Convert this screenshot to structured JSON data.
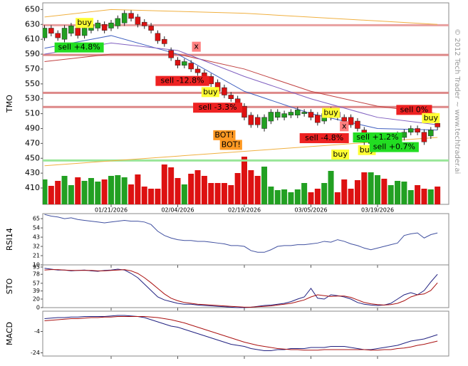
{
  "chart_data": [
    {
      "type": "candlestick",
      "ylabel": "TMO",
      "watermark": "© 2012 Tech Trader ~ www.techtrader.ai",
      "categories": [
        null,
        null,
        null,
        null,
        null,
        null,
        null,
        null,
        null,
        null,
        "01/21/2026",
        null,
        null,
        null,
        null,
        null,
        null,
        null,
        null,
        null,
        "02/04/2026",
        null,
        null,
        null,
        null,
        null,
        null,
        null,
        null,
        null,
        "02/19/2026",
        null,
        null,
        null,
        null,
        null,
        null,
        null,
        null,
        null,
        "03/05/2026",
        null,
        null,
        null,
        null,
        null,
        null,
        null,
        null,
        null,
        "03/19/2026",
        null,
        null,
        null,
        null,
        null,
        null,
        null,
        null,
        null
      ],
      "open": [
        612,
        625,
        618,
        610,
        618,
        625,
        615,
        622,
        625,
        630,
        625,
        628,
        632,
        645,
        640,
        633,
        628,
        618,
        610,
        595,
        582,
        575,
        578,
        570,
        565,
        560,
        552,
        545,
        535,
        530,
        520,
        508,
        505,
        490,
        500,
        505,
        505,
        508,
        508,
        510,
        512,
        508,
        500,
        505,
        512,
        505,
        505,
        500,
        488,
        470,
        472,
        478,
        470,
        475,
        478,
        485,
        490,
        485,
        480,
        497
      ],
      "high": [
        629,
        629,
        622,
        629,
        632,
        629,
        629,
        634,
        636,
        634,
        636,
        642,
        649,
        649,
        644,
        637,
        632,
        622,
        614,
        599,
        586,
        584,
        582,
        574,
        569,
        564,
        556,
        549,
        539,
        534,
        524,
        512,
        509,
        509,
        516,
        516,
        514,
        516,
        519,
        516,
        516,
        512,
        514,
        519,
        516,
        509,
        509,
        504,
        492,
        484,
        482,
        482,
        480,
        486,
        489,
        494,
        494,
        489,
        492,
        501
      ],
      "low": [
        608,
        614,
        608,
        606,
        614,
        611,
        611,
        618,
        621,
        618,
        621,
        624,
        628,
        634,
        626,
        624,
        618,
        604,
        600,
        581,
        571,
        571,
        566,
        561,
        551,
        546,
        536,
        531,
        526,
        516,
        501,
        491,
        491,
        486,
        496,
        501,
        501,
        504,
        504,
        506,
        501,
        494,
        496,
        501,
        501,
        496,
        491,
        486,
        468,
        466,
        468,
        466,
        466,
        471,
        474,
        481,
        481,
        468,
        476,
        488
      ],
      "close": [
        625,
        618,
        612,
        625,
        628,
        615,
        625,
        630,
        632,
        622,
        632,
        638,
        645,
        638,
        630,
        628,
        622,
        608,
        604,
        585,
        575,
        580,
        570,
        565,
        555,
        550,
        540,
        535,
        530,
        520,
        505,
        495,
        495,
        505,
        512,
        512,
        510,
        512,
        515,
        512,
        505,
        498,
        510,
        515,
        505,
        500,
        495,
        490,
        472,
        480,
        478,
        470,
        476,
        482,
        485,
        490,
        485,
        472,
        488,
        492
      ],
      "volume": [
        35,
        26,
        33,
        40,
        27,
        38,
        33,
        37,
        32,
        35,
        40,
        41,
        38,
        28,
        42,
        25,
        22,
        22,
        56,
        52,
        37,
        28,
        43,
        48,
        40,
        30,
        30,
        30,
        27,
        44,
        67,
        48,
        40,
        53,
        25,
        20,
        21,
        17,
        21,
        30,
        17,
        22,
        30,
        47,
        17,
        35,
        22,
        34,
        45,
        45,
        41,
        36,
        27,
        33,
        32,
        20,
        27,
        22,
        21,
        25
      ],
      "volume_lim": [
        0,
        100
      ],
      "up_color": "#22a022",
      "down_color": "#dd1111",
      "ylim": [
        388,
        659
      ],
      "yticks": [
        410,
        430,
        450,
        470,
        490,
        510,
        530,
        550,
        570,
        590,
        610,
        630,
        650
      ],
      "levels": [
        {
          "value": 629,
          "color": "#e8a0a0"
        },
        {
          "value": 589,
          "color": "#dd8888"
        },
        {
          "value": 538,
          "color": "#dd8888"
        },
        {
          "value": 519,
          "color": "#dd8888"
        },
        {
          "value": 447,
          "color": "#99e699"
        }
      ],
      "lines": [
        {
          "color": "#f0b040",
          "x": [
            0,
            10,
            30,
            59
          ],
          "values": [
            640,
            650,
            645,
            630
          ]
        },
        {
          "color": "#f0b040",
          "x": [
            0,
            59
          ],
          "values": [
            440,
            478
          ]
        },
        {
          "color": "#c04040",
          "x": [
            0,
            10,
            20,
            30,
            40,
            50,
            59
          ],
          "values": [
            580,
            590,
            590,
            570,
            540,
            520,
            510
          ]
        },
        {
          "color": "#4060c0",
          "x": [
            0,
            10,
            20,
            30,
            40,
            50,
            59
          ],
          "values": [
            598,
            615,
            590,
            540,
            510,
            490,
            488
          ]
        },
        {
          "color": "#8060c0",
          "x": [
            0,
            10,
            20,
            30,
            40,
            50,
            59
          ],
          "values": [
            590,
            605,
            595,
            560,
            530,
            505,
            495
          ]
        }
      ],
      "annotations": [
        {
          "text": "buy",
          "x": 6,
          "y": 632,
          "color": "#ffff33"
        },
        {
          "text": "sell +4.8%",
          "x": 5.2,
          "y": 599,
          "color": "#22dd22"
        },
        {
          "text": "x",
          "x": 22.8,
          "y": 600,
          "color": "#ff8080"
        },
        {
          "text": "sell -12.8%",
          "x": 20.7,
          "y": 554,
          "color": "#ee2222"
        },
        {
          "text": "buy",
          "x": 24.9,
          "y": 539,
          "color": "#ffff33"
        },
        {
          "text": "sell -3.3%",
          "x": 26,
          "y": 518,
          "color": "#ee2222"
        },
        {
          "text": "BOT!",
          "x": 27,
          "y": 481,
          "color": "#ff9922"
        },
        {
          "text": "BOT!",
          "x": 28,
          "y": 468,
          "color": "#ff9922"
        },
        {
          "text": "buy",
          "x": 43,
          "y": 511,
          "color": "#ffff33"
        },
        {
          "text": "x",
          "x": 45,
          "y": 493,
          "color": "#ff8080"
        },
        {
          "text": "sell -4.8%",
          "x": 42,
          "y": 477,
          "color": "#ee2222"
        },
        {
          "text": "buy",
          "x": 44.4,
          "y": 455,
          "color": "#ffff33"
        },
        {
          "text": "buy",
          "x": 48.4,
          "y": 461,
          "color": "#ffff33"
        },
        {
          "text": "sell +1.2%",
          "x": 50,
          "y": 478,
          "color": "#22dd22"
        },
        {
          "text": "sell +0.7%",
          "x": 52.5,
          "y": 465,
          "color": "#22dd22"
        },
        {
          "text": "sell 0%",
          "x": 55.5,
          "y": 515,
          "color": "#ee2222"
        },
        {
          "text": "buy",
          "x": 58,
          "y": 504,
          "color": "#ffff33"
        }
      ]
    },
    {
      "type": "line",
      "ylabel": "RSI14",
      "ylim": [
        10,
        71
      ],
      "yticks": [
        10,
        21,
        32,
        43,
        54,
        65
      ],
      "series": [
        {
          "color": "#4050a0",
          "values": [
            70,
            68,
            67,
            65,
            66,
            64,
            63,
            62,
            61,
            60,
            61,
            62,
            63,
            62,
            62,
            61,
            58,
            50,
            45,
            42,
            40,
            39,
            39,
            38,
            38,
            37,
            36,
            35,
            33,
            33,
            32,
            27,
            25,
            25,
            28,
            32,
            33,
            33,
            34,
            34,
            35,
            36,
            38,
            37,
            40,
            38,
            35,
            33,
            30,
            28,
            30,
            32,
            34,
            36,
            45,
            47,
            48,
            42,
            46,
            48
          ]
        }
      ]
    },
    {
      "type": "line",
      "ylabel": "STO",
      "ylim": [
        0,
        100
      ],
      "yticks": [
        0,
        20,
        39,
        57,
        78,
        95
      ],
      "series": [
        {
          "color": "#202080",
          "values": [
            92,
            90,
            88,
            88,
            86,
            87,
            88,
            86,
            85,
            87,
            88,
            90,
            88,
            80,
            70,
            55,
            40,
            25,
            18,
            14,
            10,
            8,
            8,
            6,
            5,
            4,
            3,
            2,
            1,
            0,
            0,
            1,
            3,
            5,
            6,
            8,
            10,
            14,
            20,
            25,
            45,
            22,
            20,
            30,
            28,
            25,
            20,
            12,
            8,
            6,
            5,
            6,
            10,
            20,
            30,
            35,
            30,
            40,
            60,
            78
          ]
        },
        {
          "color": "#aa1111",
          "values": [
            88,
            89,
            89,
            88,
            87,
            87,
            87,
            87,
            86,
            86,
            87,
            88,
            89,
            86,
            80,
            70,
            58,
            45,
            32,
            22,
            16,
            12,
            10,
            8,
            7,
            6,
            5,
            4,
            3,
            2,
            1,
            1,
            2,
            3,
            4,
            6,
            8,
            10,
            14,
            18,
            25,
            30,
            28,
            26,
            27,
            27,
            24,
            18,
            12,
            9,
            7,
            6,
            7,
            10,
            16,
            25,
            30,
            32,
            40,
            58
          ]
        }
      ]
    },
    {
      "type": "line",
      "ylabel": "MACD",
      "ylim": [
        -27,
        15
      ],
      "yticks": [
        -24,
        -4
      ],
      "series": [
        {
          "color": "#202080",
          "values": [
            8,
            8.5,
            9,
            9,
            9.5,
            9.5,
            10,
            10,
            10,
            10,
            10.5,
            11,
            11,
            10.5,
            10,
            9,
            7,
            5,
            3,
            1,
            0,
            -2,
            -4,
            -6,
            -8,
            -10,
            -12,
            -14,
            -16,
            -17,
            -18,
            -20,
            -21,
            -22,
            -22,
            -21,
            -21,
            -20,
            -20,
            -20,
            -19,
            -19,
            -19,
            -18,
            -18,
            -18,
            -19,
            -20,
            -21,
            -21,
            -20,
            -19,
            -18,
            -17,
            -15,
            -13,
            -12,
            -11,
            -9,
            -7
          ]
        },
        {
          "color": "#aa1111",
          "values": [
            6,
            6.5,
            7,
            7.5,
            8,
            8,
            8.5,
            9,
            9,
            9.5,
            9.5,
            10,
            10,
            10,
            10,
            10,
            9.5,
            9,
            8,
            7,
            5.5,
            4,
            2,
            0,
            -2,
            -4,
            -6,
            -8,
            -10,
            -12,
            -14,
            -15.5,
            -17,
            -18,
            -19,
            -20,
            -20.5,
            -21,
            -21,
            -21.5,
            -21.5,
            -21.5,
            -21,
            -21,
            -21,
            -21,
            -21,
            -21,
            -21,
            -21.5,
            -21.5,
            -21,
            -21,
            -20,
            -19.5,
            -18.5,
            -17,
            -16,
            -14.5,
            -13
          ]
        }
      ]
    }
  ]
}
